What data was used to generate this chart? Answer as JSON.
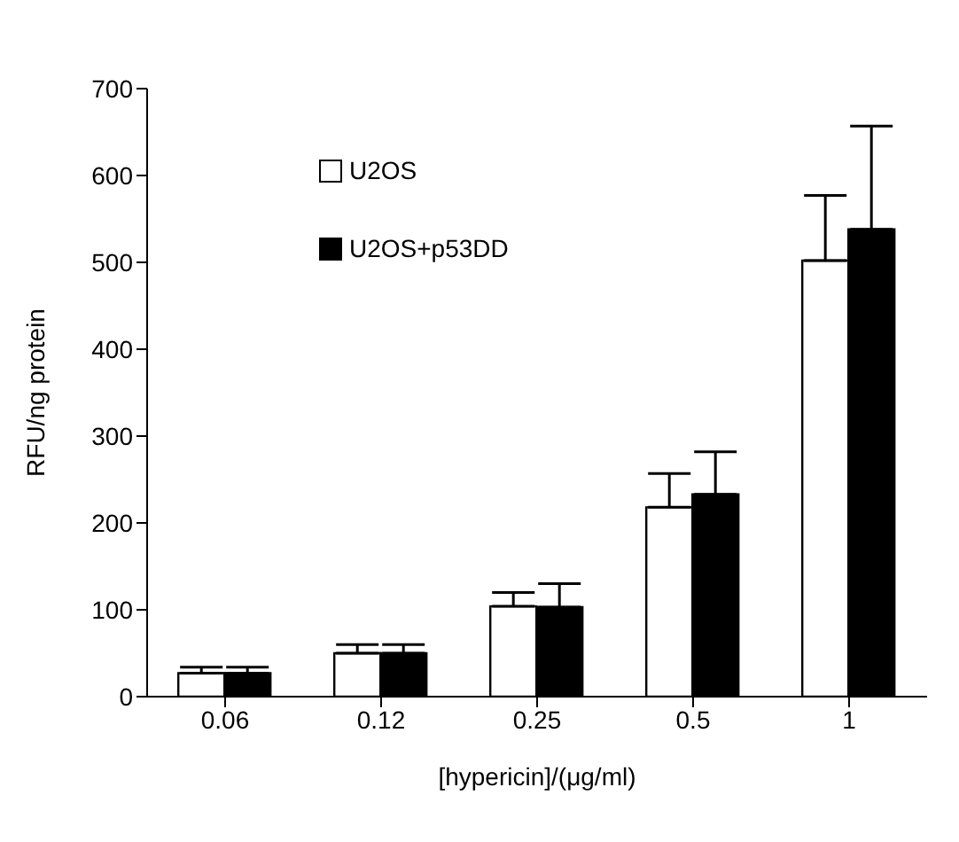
{
  "chart_data": {
    "type": "bar",
    "xlabel": "[hypericin]/(μg/ml)",
    "ylabel": "RFU/ng protein",
    "categories": [
      "0.06",
      "0.12",
      "0.25",
      "0.5",
      "1"
    ],
    "series": [
      {
        "name": "U2OS",
        "color": "#ffffff",
        "values": [
          27,
          50,
          104,
          218,
          502
        ],
        "errors": [
          [
            27,
            34
          ],
          [
            50,
            60
          ],
          [
            104,
            120
          ],
          [
            218,
            257
          ],
          [
            502,
            577
          ]
        ]
      },
      {
        "name": "U2OS+p53DD",
        "color": "#000000",
        "values": [
          27,
          50,
          103,
          233,
          538
        ],
        "errors": [
          [
            27,
            34
          ],
          [
            50,
            60
          ],
          [
            103,
            130
          ],
          [
            233,
            282
          ],
          [
            538,
            657
          ]
        ]
      }
    ],
    "ylim": [
      0,
      700
    ],
    "yticks": [
      0,
      100,
      200,
      300,
      400,
      500,
      600,
      700
    ],
    "grid": false,
    "legend": "top left"
  }
}
